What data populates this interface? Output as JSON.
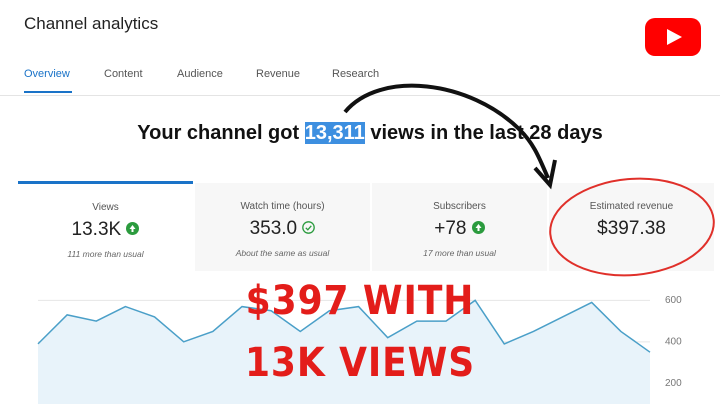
{
  "header": {
    "title": "Channel analytics"
  },
  "tabs": [
    "Overview",
    "Content",
    "Audience",
    "Revenue",
    "Research"
  ],
  "headline": {
    "prefix": "Your channel got ",
    "highlight": "13,311",
    "suffix": " views in the last 28 days"
  },
  "cards": [
    {
      "label": "Views",
      "value": "13.3K",
      "note": "111 more than usual"
    },
    {
      "label": "Watch time (hours)",
      "value": "353.0",
      "note": "About the same as usual"
    },
    {
      "label": "Subscribers",
      "value": "+78",
      "note": "17 more than usual"
    },
    {
      "label": "Estimated revenue",
      "value": "$397.38"
    }
  ],
  "overlay": [
    "$397 WITH",
    "13K VIEWS"
  ],
  "chart_data": {
    "type": "line",
    "color": "#4a9fc8",
    "ylim": [
      100,
      650
    ],
    "yticks": [
      200,
      400,
      600
    ],
    "values": [
      390,
      530,
      500,
      570,
      520,
      400,
      450,
      570,
      550,
      450,
      550,
      570,
      420,
      500,
      500,
      600,
      390,
      450,
      520,
      590,
      450,
      350
    ]
  }
}
